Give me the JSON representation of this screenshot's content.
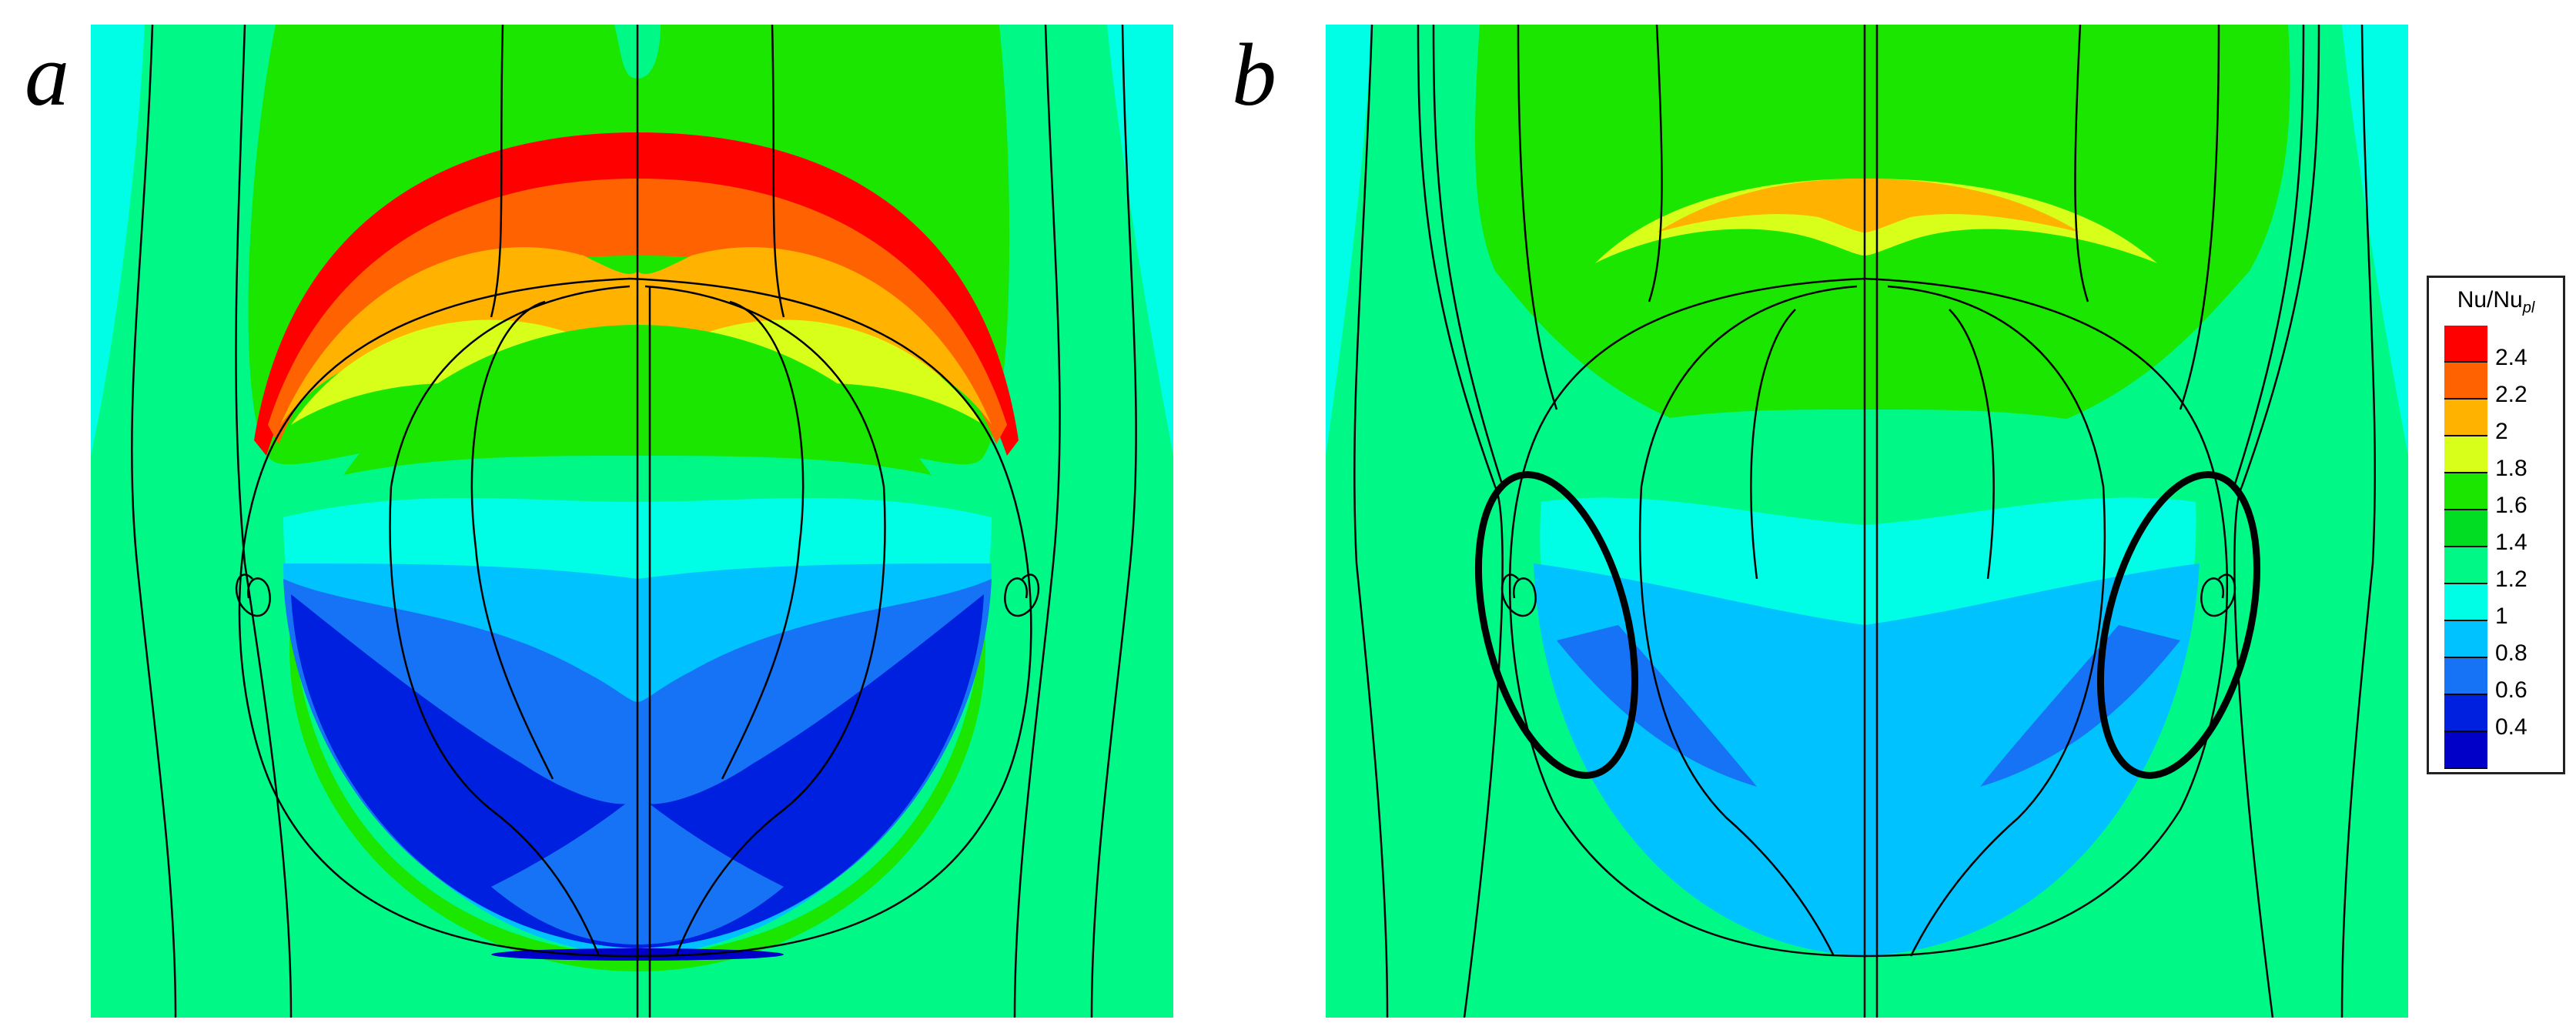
{
  "figure": {
    "panel_labels": [
      "a",
      "b"
    ]
  },
  "legend": {
    "title_main": "Nu/Nu",
    "title_sub": "pl",
    "levels": [
      {
        "value": "2.4",
        "color": "#ff0000"
      },
      {
        "value": "2.2",
        "color": "#ff6200"
      },
      {
        "value": "2",
        "color": "#ffb200"
      },
      {
        "value": "1.8",
        "color": "#d8ff1a"
      },
      {
        "value": "1.6",
        "color": "#1ae600"
      },
      {
        "value": "1.4",
        "color": "#00dd22"
      },
      {
        "value": "1.2",
        "color": "#00f986"
      },
      {
        "value": "1",
        "color": "#00fde6"
      },
      {
        "value": "0.8",
        "color": "#00c2ff"
      },
      {
        "value": "0.6",
        "color": "#1673f5"
      },
      {
        "value": "0.4",
        "color": "#0020e0"
      },
      {
        "value": "",
        "color": "#0000c8"
      }
    ]
  },
  "colors": {
    "background_field": "#00f986",
    "wake_cyan": "#00fde6",
    "streamline": "#000000"
  }
}
